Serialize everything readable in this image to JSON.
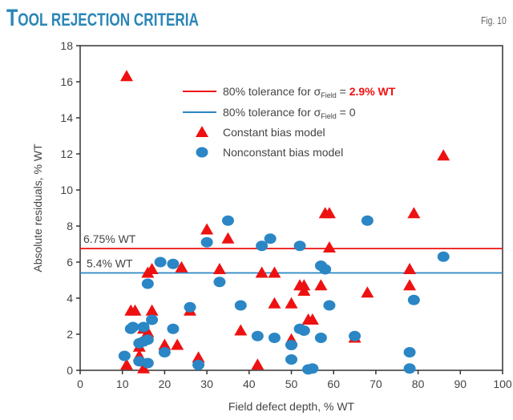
{
  "header": {
    "title_first": "T",
    "title_rest": "OOL REJECTION CRITERIA",
    "fig_label": "Fig. 10"
  },
  "chart_data": {
    "type": "scatter",
    "title": "Tool rejection criteria",
    "xlabel": "Field defect depth, % WT",
    "ylabel": "Absolute residuals, % WT",
    "xlim": [
      0,
      100
    ],
    "ylim": [
      0,
      18
    ],
    "xticks": [
      "0",
      "10",
      "20",
      "30",
      "40",
      "50",
      "60",
      "70",
      "80",
      "90",
      "100"
    ],
    "yticks": [
      "0",
      "2",
      "4",
      "6",
      "8",
      "10",
      "12",
      "14",
      "16",
      "18"
    ],
    "grid": false,
    "legend_position": "top-right",
    "colors": {
      "red": "#ee1111",
      "blue": "#2b86c5"
    },
    "reference_lines": [
      {
        "name": "80% tolerance for σField = 2.9% WT",
        "legend_prefix": "80% tolerance for σ",
        "legend_sub": "Field",
        "legend_suffix": " = ",
        "legend_highlight": "2.9% WT",
        "y": 6.75,
        "label": "6.75% WT",
        "color": "#ee1111"
      },
      {
        "name": "80% tolerance for σField = 0",
        "legend_prefix": "80% tolerance for σ",
        "legend_sub": "Field",
        "legend_suffix": " = 0",
        "legend_highlight": "",
        "y": 5.4,
        "label": "5.4% WT",
        "color": "#2b86c5"
      }
    ],
    "series": [
      {
        "name": "Constant bias model",
        "marker": "triangle",
        "color": "#ee1111",
        "points": [
          [
            11,
            16.3
          ],
          [
            11,
            0.3
          ],
          [
            12,
            3.3
          ],
          [
            13,
            3.3
          ],
          [
            14,
            1.3
          ],
          [
            14,
            0.8
          ],
          [
            15,
            2.3
          ],
          [
            15,
            0.1
          ],
          [
            16,
            2.1
          ],
          [
            16,
            5.4
          ],
          [
            17,
            3.3
          ],
          [
            17,
            5.6
          ],
          [
            20,
            1.4
          ],
          [
            23,
            1.4
          ],
          [
            24,
            5.7
          ],
          [
            26,
            3.3
          ],
          [
            28,
            0.7
          ],
          [
            30,
            7.8
          ],
          [
            33,
            5.6
          ],
          [
            35,
            7.3
          ],
          [
            38,
            2.2
          ],
          [
            42,
            0.3
          ],
          [
            43,
            5.4
          ],
          [
            46,
            3.7
          ],
          [
            46,
            5.4
          ],
          [
            50,
            3.7
          ],
          [
            50,
            1.7
          ],
          [
            52,
            4.7
          ],
          [
            53,
            4.4
          ],
          [
            53,
            4.7
          ],
          [
            54,
            2.8
          ],
          [
            55,
            2.8
          ],
          [
            57,
            4.7
          ],
          [
            58,
            8.7
          ],
          [
            59,
            8.7
          ],
          [
            59,
            6.8
          ],
          [
            65,
            1.8
          ],
          [
            68,
            4.3
          ],
          [
            78,
            5.6
          ],
          [
            78,
            4.7
          ],
          [
            79,
            8.7
          ],
          [
            86,
            11.9
          ]
        ]
      },
      {
        "name": "Nonconstant bias model",
        "marker": "circle",
        "color": "#2b86c5",
        "points": [
          [
            10.5,
            0.8
          ],
          [
            12,
            2.3
          ],
          [
            12.5,
            2.4
          ],
          [
            14,
            1.5
          ],
          [
            14,
            0.5
          ],
          [
            15,
            2.4
          ],
          [
            15,
            1.6
          ],
          [
            16,
            0.4
          ],
          [
            16,
            1.7
          ],
          [
            16,
            4.8
          ],
          [
            17,
            2.8
          ],
          [
            19,
            6.0
          ],
          [
            20,
            1.0
          ],
          [
            22,
            2.3
          ],
          [
            22,
            5.9
          ],
          [
            26,
            3.5
          ],
          [
            28,
            0.3
          ],
          [
            30,
            7.1
          ],
          [
            33,
            4.9
          ],
          [
            35,
            8.3
          ],
          [
            38,
            3.6
          ],
          [
            42,
            1.9
          ],
          [
            43,
            6.9
          ],
          [
            45,
            7.3
          ],
          [
            46,
            1.8
          ],
          [
            50,
            1.4
          ],
          [
            50,
            0.6
          ],
          [
            52,
            2.3
          ],
          [
            52,
            6.9
          ],
          [
            53,
            2.2
          ],
          [
            54,
            0.05
          ],
          [
            55,
            0.1
          ],
          [
            57,
            1.8
          ],
          [
            57,
            5.8
          ],
          [
            58,
            5.6
          ],
          [
            59,
            3.6
          ],
          [
            65,
            1.9
          ],
          [
            68,
            8.3
          ],
          [
            78,
            1.0
          ],
          [
            78,
            0.1
          ],
          [
            79,
            3.9
          ],
          [
            86,
            6.3
          ]
        ]
      }
    ]
  }
}
